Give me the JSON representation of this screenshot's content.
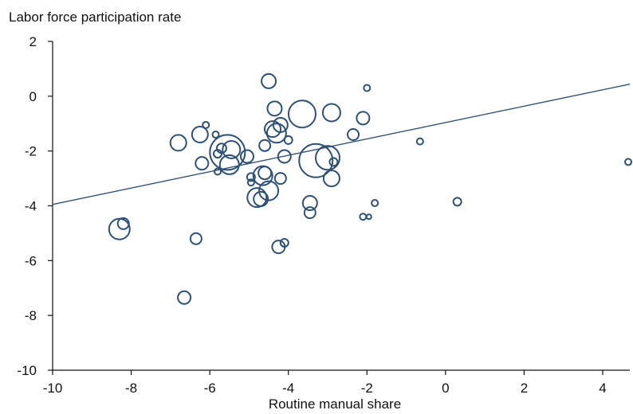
{
  "chart_data": {
    "type": "scatter",
    "title": "Labor force participation rate",
    "xlabel": "Routine manual share",
    "ylabel": "",
    "xlim": [
      -10,
      5
    ],
    "ylim": [
      -10,
      2
    ],
    "xticks": [
      -10,
      -8,
      -6,
      -4,
      -2,
      0,
      2,
      4
    ],
    "yticks": [
      2,
      0,
      -2,
      -4,
      -6,
      -8,
      -10
    ],
    "grid": false,
    "marker_color": "#2e5077",
    "trendline": {
      "x": [
        -10,
        5
      ],
      "y": [
        -3.95,
        0.44
      ]
    },
    "points": [
      {
        "x": -4.5,
        "y": 0.55,
        "size": 9
      },
      {
        "x": -2.0,
        "y": 0.3,
        "size": 4
      },
      {
        "x": -4.35,
        "y": -0.45,
        "size": 9
      },
      {
        "x": -3.65,
        "y": -0.65,
        "size": 17
      },
      {
        "x": -2.9,
        "y": -0.6,
        "size": 11
      },
      {
        "x": -2.1,
        "y": -0.8,
        "size": 8
      },
      {
        "x": -6.1,
        "y": -1.05,
        "size": 4
      },
      {
        "x": -4.2,
        "y": -1.05,
        "size": 9
      },
      {
        "x": -4.4,
        "y": -1.2,
        "size": 10
      },
      {
        "x": -4.3,
        "y": -1.35,
        "size": 12
      },
      {
        "x": -6.25,
        "y": -1.4,
        "size": 10
      },
      {
        "x": -5.85,
        "y": -1.4,
        "size": 4
      },
      {
        "x": -2.35,
        "y": -1.4,
        "size": 7
      },
      {
        "x": -6.8,
        "y": -1.7,
        "size": 10
      },
      {
        "x": -4.0,
        "y": -1.6,
        "size": 5
      },
      {
        "x": -0.65,
        "y": -1.65,
        "size": 4
      },
      {
        "x": -4.6,
        "y": -1.8,
        "size": 7
      },
      {
        "x": -5.7,
        "y": -1.9,
        "size": 6
      },
      {
        "x": -5.45,
        "y": -1.95,
        "size": 11
      },
      {
        "x": -5.55,
        "y": -2.05,
        "size": 22
      },
      {
        "x": -5.8,
        "y": -2.1,
        "size": 5
      },
      {
        "x": -5.05,
        "y": -2.2,
        "size": 8
      },
      {
        "x": -4.1,
        "y": -2.2,
        "size": 8
      },
      {
        "x": -3.3,
        "y": -2.35,
        "size": 21
      },
      {
        "x": -3.0,
        "y": -2.25,
        "size": 15
      },
      {
        "x": -2.85,
        "y": -2.4,
        "size": 5
      },
      {
        "x": -6.2,
        "y": -2.45,
        "size": 8
      },
      {
        "x": -5.5,
        "y": -2.5,
        "size": 12
      },
      {
        "x": -5.8,
        "y": -2.75,
        "size": 4
      },
      {
        "x": 4.65,
        "y": -2.4,
        "size": 4
      },
      {
        "x": -4.6,
        "y": -2.8,
        "size": 8
      },
      {
        "x": -4.65,
        "y": -2.9,
        "size": 12
      },
      {
        "x": -4.95,
        "y": -2.95,
        "size": 5
      },
      {
        "x": -4.2,
        "y": -3.0,
        "size": 7
      },
      {
        "x": -2.9,
        "y": -3.0,
        "size": 10
      },
      {
        "x": -4.95,
        "y": -3.15,
        "size": 4
      },
      {
        "x": -4.5,
        "y": -3.45,
        "size": 12
      },
      {
        "x": -4.8,
        "y": -3.7,
        "size": 12
      },
      {
        "x": -4.7,
        "y": -3.75,
        "size": 9
      },
      {
        "x": -3.45,
        "y": -3.9,
        "size": 9
      },
      {
        "x": -1.8,
        "y": -3.9,
        "size": 4
      },
      {
        "x": 0.3,
        "y": -3.85,
        "size": 5
      },
      {
        "x": -3.45,
        "y": -4.25,
        "size": 7
      },
      {
        "x": -2.1,
        "y": -4.4,
        "size": 4
      },
      {
        "x": -1.95,
        "y": -4.4,
        "size": 3
      },
      {
        "x": -8.2,
        "y": -4.65,
        "size": 7
      },
      {
        "x": -8.3,
        "y": -4.85,
        "size": 13
      },
      {
        "x": -6.35,
        "y": -5.2,
        "size": 7
      },
      {
        "x": -4.1,
        "y": -5.35,
        "size": 5
      },
      {
        "x": -4.25,
        "y": -5.5,
        "size": 8
      },
      {
        "x": -6.65,
        "y": -7.35,
        "size": 8
      }
    ]
  }
}
